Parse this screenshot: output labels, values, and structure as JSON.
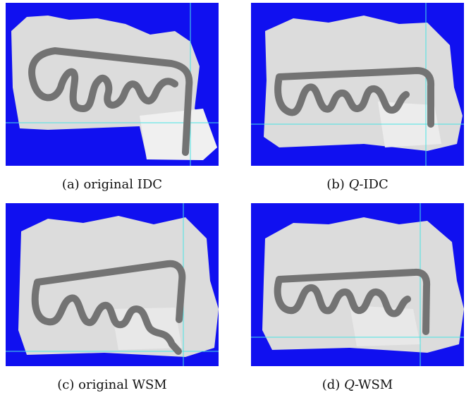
{
  "figure": {
    "background_color": "#1010f0",
    "map_color": "#dcdcdc",
    "trajectory_color": "#737373",
    "grid_line_color": "#49e3e3",
    "panels": [
      {
        "id": "a",
        "caption_label": "(a)",
        "caption_prefix": "original",
        "caption_method": "IDC"
      },
      {
        "id": "b",
        "caption_label": "(b)",
        "caption_prefix": "Q",
        "caption_method": "IDC"
      },
      {
        "id": "c",
        "caption_label": "(c)",
        "caption_prefix": "original",
        "caption_method": "WSM"
      },
      {
        "id": "d",
        "caption_label": "(d)",
        "caption_prefix": "Q",
        "caption_method": "WSM"
      }
    ]
  }
}
